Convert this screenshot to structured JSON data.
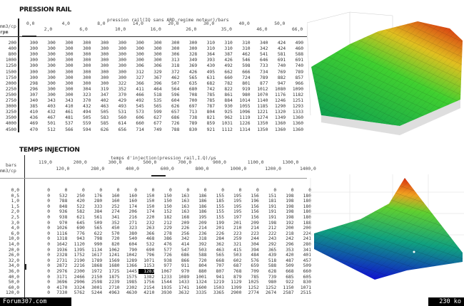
{
  "pression_rail": {
    "title": "PRESSION RAIL",
    "caption": "pression rail(IQ sans ARD,regime moteur)/bars",
    "row_axis_label_1": "mm3/cp",
    "row_axis_label_2": "rpm",
    "columns": [
      "0,0",
      "2,0",
      "4,0",
      "6,0",
      "8,0",
      "10,0",
      "14,0",
      "16,0",
      "20,0",
      "26,0",
      "30,0",
      "35,0",
      "40,0",
      "46,0",
      "50,0",
      "66,0"
    ],
    "rows": [
      {
        "label": "200",
        "values": [
          300,
          300,
          300,
          300,
          300,
          300,
          300,
          300,
          300,
          300,
          310,
          310,
          310,
          340,
          424,
          490
        ]
      },
      {
        "label": "400",
        "values": [
          300,
          300,
          300,
          300,
          300,
          300,
          300,
          300,
          300,
          300,
          310,
          310,
          310,
          342,
          424,
          460
        ]
      },
      {
        "label": "800",
        "values": [
          300,
          300,
          300,
          300,
          300,
          300,
          300,
          300,
          306,
          328,
          364,
          387,
          462,
          541,
          581,
          588
        ]
      },
      {
        "label": "1000",
        "values": [
          300,
          300,
          300,
          300,
          300,
          300,
          300,
          300,
          313,
          349,
          393,
          426,
          546,
          646,
          691,
          691
        ]
      },
      {
        "label": "1250",
        "values": [
          300,
          300,
          300,
          300,
          300,
          300,
          306,
          306,
          318,
          369,
          430,
          492,
          598,
          733,
          740,
          740
        ]
      },
      {
        "label": "1500",
        "values": [
          300,
          300,
          300,
          300,
          300,
          300,
          312,
          329,
          372,
          426,
          495,
          662,
          666,
          734,
          769,
          789
        ]
      },
      {
        "label": "1750",
        "values": [
          300,
          300,
          300,
          300,
          300,
          300,
          327,
          367,
          462,
          565,
          631,
          660,
          724,
          789,
          882,
          857
        ]
      },
      {
        "label": "2000",
        "values": [
          298,
          300,
          300,
          300,
          300,
          322,
          366,
          396,
          507,
          635,
          682,
          782,
          801,
          877,
          947,
          966
        ]
      },
      {
        "label": "2250",
        "values": [
          296,
          300,
          300,
          304,
          319,
          352,
          411,
          464,
          564,
          680,
          742,
          822,
          919,
          1012,
          1080,
          1090
        ]
      },
      {
        "label": "2500",
        "values": [
          307,
          300,
          300,
          323,
          347,
          370,
          466,
          518,
          596,
          708,
          785,
          861,
          980,
          1070,
          1176,
          1182
        ]
      },
      {
        "label": "2750",
        "values": [
          340,
          343,
          343,
          370,
          402,
          429,
          492,
          535,
          604,
          700,
          785,
          884,
          1014,
          1140,
          1246,
          1251
        ]
      },
      {
        "label": "3000",
        "values": [
          385,
          403,
          410,
          432,
          463,
          493,
          545,
          565,
          626,
          697,
          787,
          930,
          1055,
          1185,
          1290,
          1293
        ]
      },
      {
        "label": "3250",
        "values": [
          410,
          432,
          461,
          494,
          505,
          531,
          573,
          599,
          657,
          713,
          804,
          925,
          1096,
          1221,
          1320,
          1333
        ]
      },
      {
        "label": "3500",
        "values": [
          436,
          467,
          481,
          505,
          583,
          560,
          606,
          627,
          686,
          738,
          821,
          962,
          1119,
          1274,
          1349,
          1360
        ]
      },
      {
        "label": "4000",
        "values": [
          469,
          501,
          537,
          559,
          585,
          614,
          660,
          677,
          726,
          789,
          859,
          1031,
          1226,
          1350,
          1360,
          1360
        ]
      },
      {
        "label": "4500",
        "values": [
          470,
          512,
          566,
          594,
          626,
          656,
          714,
          749,
          788,
          830,
          921,
          1112,
          1314,
          1350,
          1360,
          1360
        ]
      }
    ]
  },
  "temps_injection": {
    "title": "TEMPS INJECTION",
    "caption": "temps d'injection(pression rail,I.Q)/µs",
    "row_axis_label_1": "bars",
    "row_axis_label_2": "mm3/cp",
    "columns": [
      "119,0",
      "120,0",
      "200,0",
      "280,0",
      "300,0",
      "400,0",
      "500,0",
      "600,0",
      "700,0",
      "800,0",
      "900,0",
      "1000,0",
      "1100,0",
      "1200,0",
      "1300,0",
      "1400,0"
    ],
    "selected_column": 7,
    "highlighted_cell": {
      "row": 15,
      "col": 6
    },
    "rows": [
      {
        "label": "0,0",
        "values": [
          0,
          0,
          0,
          0,
          0,
          0,
          0,
          0,
          0,
          0,
          0,
          0,
          0,
          0,
          0,
          0
        ]
      },
      {
        "label": "0,5",
        "values": [
          0,
          532,
          250,
          176,
          160,
          160,
          150,
          150,
          163,
          186,
          155,
          195,
          156,
          151,
          198,
          180
        ]
      },
      {
        "label": "1,0",
        "values": [
          0,
          788,
          420,
          280,
          160,
          160,
          150,
          150,
          163,
          186,
          185,
          195,
          196,
          181,
          198,
          180
        ]
      },
      {
        "label": "1,5",
        "values": [
          0,
          848,
          522,
          333,
          252,
          174,
          150,
          150,
          163,
          186,
          155,
          195,
          156,
          191,
          198,
          180
        ]
      },
      {
        "label": "2,0",
        "values": [
          0,
          936,
          582,
          384,
          274,
          206,
          174,
          152,
          163,
          186,
          155,
          195,
          156,
          191,
          198,
          180
        ]
      },
      {
        "label": "2,5",
        "values": [
          0,
          938,
          621,
          561,
          341,
          216,
          220,
          182,
          168,
          195,
          155,
          197,
          156,
          191,
          198,
          180
        ]
      },
      {
        "label": "3,0",
        "values": [
          0,
          970,
          645,
          509,
          352,
          271,
          232,
          212,
          209,
          209,
          199,
          201,
          209,
          198,
          192,
          188
        ]
      },
      {
        "label": "4,0",
        "values": [
          0,
          1026,
          690,
          565,
          450,
          323,
          263,
          229,
          226,
          214,
          201,
          210,
          214,
          212,
          200,
          200
        ]
      },
      {
        "label": "6,0",
        "values": [
          0,
          1116,
          776,
          622,
          570,
          380,
          366,
          278,
          256,
          236,
          226,
          223,
          223,
          222,
          218,
          224
        ]
      },
      {
        "label": "10,0",
        "values": [
          0,
          1318,
          943,
          798,
          720,
          540,
          468,
          386,
          342,
          318,
          284,
          259,
          244,
          243,
          242,
          241
        ]
      },
      {
        "label": "14,0",
        "values": [
          0,
          1642,
          1120,
          990,
          820,
          604,
          532,
          476,
          414,
          392,
          362,
          321,
          304,
          292,
          296,
          280
        ]
      },
      {
        "label": "20,0",
        "values": [
          0,
          1936,
          1395,
          1134,
          1062,
          790,
          690,
          577,
          547,
          503,
          463,
          415,
          394,
          365,
          353,
          341
        ]
      },
      {
        "label": "26,0",
        "values": [
          0,
          2328,
          1752,
          1617,
          1241,
          1042,
          796,
          726,
          686,
          588,
          565,
          503,
          484,
          439,
          420,
          401
        ]
      },
      {
        "label": "32,0",
        "values": [
          0,
          2731,
          2190,
          1789,
          1569,
          1289,
          1071,
          938,
          866,
          720,
          668,
          602,
          576,
          518,
          487,
          457
        ]
      },
      {
        "label": "34,0",
        "values": [
          0,
          2872,
          2216,
          1868,
          1680,
          1366,
          1153,
          977,
          911,
          804,
          707,
          687,
          659,
          588,
          509,
          509
        ]
      },
      {
        "label": "36,0",
        "values": [
          0,
          2976,
          2300,
          1972,
          1725,
          1445,
          1283,
          1067,
          970,
          880,
          807,
          768,
          709,
          628,
          668,
          660
        ]
      },
      {
        "label": "40,0",
        "values": [
          0,
          3171,
          2466,
          2150,
          1875,
          1575,
          1382,
          1233,
          1089,
          1001,
          941,
          879,
          785,
          739,
          685,
          605
        ]
      },
      {
        "label": "50,0",
        "values": [
          0,
          3696,
          2906,
          2598,
          2239,
          1985,
          1756,
          1544,
          1433,
          1324,
          1219,
          1129,
          1025,
          980,
          922,
          830
        ]
      },
      {
        "label": "60,0",
        "values": [
          0,
          4170,
          3324,
          3001,
          2710,
          2302,
          2154,
          1935,
          1741,
          1600,
          1503,
          1399,
          1252,
          1252,
          1150,
          1071
        ]
      },
      {
        "label": "120,0",
        "values": [
          0,
          7330,
          5762,
          5244,
          4963,
          4630,
          4210,
          3930,
          3632,
          3335,
          3365,
          2900,
          2774,
          2674,
          2587,
          2515
        ]
      }
    ]
  },
  "footer": {
    "site": "Forum307.com",
    "size": "230 ko"
  },
  "colors": {
    "surface_low": "#1020c0",
    "surface_mid": "#20d040",
    "surface_high": "#e03010"
  }
}
